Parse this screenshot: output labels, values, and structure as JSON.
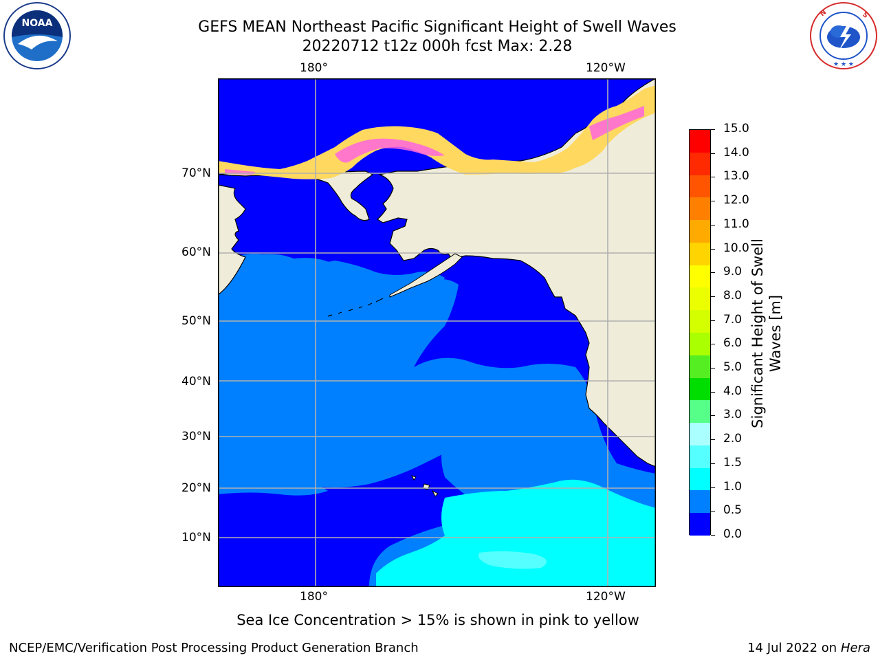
{
  "header": {
    "title_line1": "GEFS MEAN Northeast Pacific Significant Height of Swell Waves",
    "title_line2": "20220712 t12z 000h fcst   Max: 2.28"
  },
  "logos": {
    "noaa_text": "NOAA",
    "noaa_ring_text": "NATIONAL OCEANIC AND ATMOSPHERIC ADMINISTRATION · U.S. DEPARTMENT OF COMMERCE",
    "nws_ring_text": "NATIONAL WEATHER SERVICE"
  },
  "map": {
    "top_lon_labels": [
      "180°",
      "120°W"
    ],
    "bottom_lon_labels": [
      "180°",
      "120°W"
    ],
    "lat_labels": [
      "70°N",
      "60°N",
      "50°N",
      "40°N",
      "30°N",
      "20°N",
      "10°N"
    ],
    "colors": {
      "land": "#efedd9",
      "ocean_0": "#0000ff",
      "ocean_05": "#0080ff",
      "ocean_1": "#00ffff",
      "ice_pink": "#ff66dd",
      "ice_yellow": "#ffd860"
    }
  },
  "colorbar": {
    "title": "Significant Height of Swell Waves [m]",
    "tick_labels": [
      "15.0",
      "14.0",
      "13.0",
      "12.0",
      "11.0",
      "10.0",
      "9.0",
      "8.0",
      "7.0",
      "6.0",
      "5.0",
      "4.0",
      "3.0",
      "2.0",
      "1.5",
      "1.0",
      "0.5",
      "0.0"
    ],
    "colors_top_to_bottom": [
      "#ff0000",
      "#ff2a00",
      "#ff5500",
      "#ff8000",
      "#ffaa00",
      "#ffd400",
      "#ffff00",
      "#ecff00",
      "#d4ff00",
      "#aaff00",
      "#55ee22",
      "#00dd00",
      "#55ff88",
      "#aaffff",
      "#55ffff",
      "#00ffff",
      "#0080ff",
      "#0000ff"
    ]
  },
  "caption": "Sea Ice Concentration > 15% is shown in pink to yellow",
  "footer": {
    "left": "NCEP/EMC/Verification Post Processing Product Generation Branch",
    "right_prefix": "14 Jul 2022 on ",
    "right_italic": "Hera"
  }
}
